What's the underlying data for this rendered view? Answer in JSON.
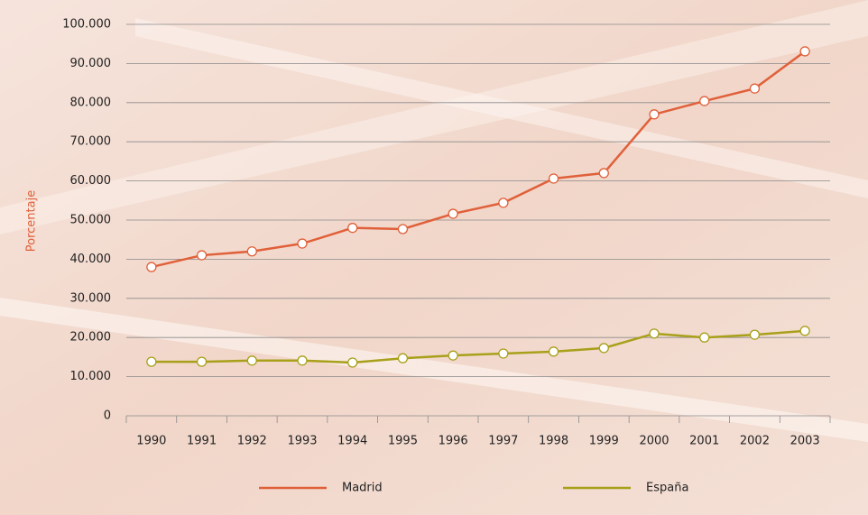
{
  "chart_data": {
    "type": "line",
    "y_label": "Porcentaje",
    "categories": [
      "1990",
      "1991",
      "1992",
      "1993",
      "1994",
      "1995",
      "1996",
      "1997",
      "1998",
      "1999",
      "2000",
      "2001",
      "2002",
      "2003"
    ],
    "series": [
      {
        "name": "Madrid",
        "color": "#e0603a",
        "values": [
          38000,
          41000,
          42000,
          44000,
          48000,
          47700,
          51600,
          54400,
          60600,
          62000,
          77000,
          80400,
          83600,
          93100
        ]
      },
      {
        "name": "España",
        "color": "#a8a01a",
        "values": [
          13800,
          13800,
          14100,
          14100,
          13600,
          14700,
          15400,
          15900,
          16400,
          17300,
          21000,
          20000,
          20700,
          21700
        ]
      }
    ],
    "ylim": [
      0,
      100000
    ],
    "yticks": [
      0,
      {
        "value": 10000,
        "label": "10.000"
      },
      {
        "value": 20000,
        "label": "20.000"
      },
      {
        "value": 30000,
        "label": "30.000"
      },
      {
        "value": 40000,
        "label": "40.000"
      },
      {
        "value": 50000,
        "label": "50.000"
      },
      {
        "value": 60000,
        "label": "60.000"
      },
      {
        "value": 70000,
        "label": "70.000"
      },
      {
        "value": 80000,
        "label": "80.000"
      },
      {
        "value": 90000,
        "label": "90.000"
      },
      {
        "value": 100000,
        "label": "100.000"
      }
    ],
    "grid": true,
    "legend": "bottom"
  }
}
